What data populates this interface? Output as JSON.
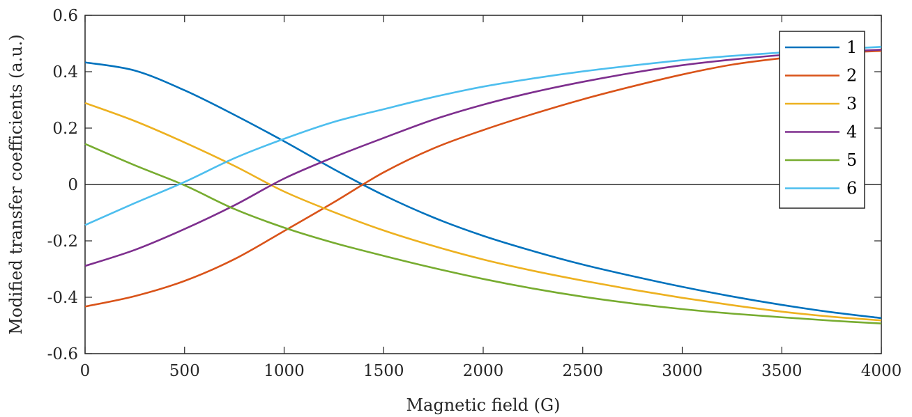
{
  "chart_data": {
    "type": "line",
    "title": "",
    "xlabel": "Magnetic field (G)",
    "ylabel": "Modified transfer coefficients (a.u.)",
    "xlim": [
      0,
      4000
    ],
    "ylim": [
      -0.6,
      0.6
    ],
    "xticks": [
      0,
      500,
      1000,
      1500,
      2000,
      2500,
      3000,
      3500,
      4000
    ],
    "xtick_labels": [
      "0",
      "500",
      "1000",
      "1500",
      "2000",
      "2500",
      "3000",
      "3500",
      "4000"
    ],
    "yticks": [
      -0.6,
      -0.4,
      -0.2,
      0,
      0.2,
      0.4,
      0.6
    ],
    "ytick_labels": [
      "-0.6",
      "-0.4",
      "-0.2",
      "0",
      "0.2",
      "0.4",
      "0.6"
    ],
    "grid": false,
    "zero_line": true,
    "legend_position": "top-right",
    "x": [
      0,
      250,
      500,
      750,
      1000,
      1250,
      1500,
      1750,
      2000,
      2250,
      2500,
      2750,
      3000,
      3250,
      3500,
      3750,
      4000
    ],
    "series": [
      {
        "name": "1",
        "color": "#0072BD",
        "values": [
          0.433,
          0.404,
          0.334,
          0.247,
          0.153,
          0.054,
          -0.038,
          -0.117,
          -0.182,
          -0.236,
          -0.284,
          -0.325,
          -0.363,
          -0.397,
          -0.427,
          -0.453,
          -0.474
        ]
      },
      {
        "name": "2",
        "color": "#D95319",
        "values": [
          -0.433,
          -0.396,
          -0.342,
          -0.265,
          -0.165,
          -0.063,
          0.043,
          0.128,
          0.193,
          0.25,
          0.302,
          0.348,
          0.39,
          0.425,
          0.448,
          0.465,
          0.474
        ]
      },
      {
        "name": "3",
        "color": "#EDB120",
        "values": [
          0.289,
          0.225,
          0.149,
          0.066,
          -0.025,
          -0.098,
          -0.163,
          -0.218,
          -0.266,
          -0.306,
          -0.341,
          -0.373,
          -0.402,
          -0.428,
          -0.451,
          -0.469,
          -0.482
        ]
      },
      {
        "name": "4",
        "color": "#7E2F8E",
        "values": [
          -0.289,
          -0.232,
          -0.158,
          -0.074,
          0.021,
          0.097,
          0.165,
          0.23,
          0.283,
          0.327,
          0.364,
          0.396,
          0.423,
          0.443,
          0.459,
          0.47,
          0.478
        ]
      },
      {
        "name": "5",
        "color": "#77AC30",
        "values": [
          0.144,
          0.068,
          -0.003,
          -0.087,
          -0.153,
          -0.207,
          -0.253,
          -0.296,
          -0.335,
          -0.369,
          -0.398,
          -0.422,
          -0.442,
          -0.458,
          -0.471,
          -0.483,
          -0.493
        ]
      },
      {
        "name": "6",
        "color": "#4DBEEE",
        "values": [
          -0.144,
          -0.066,
          0.009,
          0.093,
          0.162,
          0.222,
          0.267,
          0.31,
          0.347,
          0.376,
          0.401,
          0.422,
          0.441,
          0.456,
          0.468,
          0.479,
          0.488
        ]
      }
    ]
  }
}
